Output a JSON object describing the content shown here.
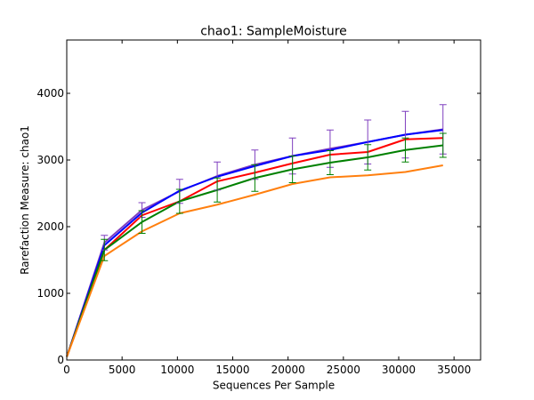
{
  "chart_data": {
    "type": "line",
    "title": "chao1: SampleMoisture",
    "xlabel": "Sequences Per Sample",
    "ylabel": "Rarefaction Measure: chao1",
    "xlim": [
      0,
      37400
    ],
    "ylim": [
      0,
      4800
    ],
    "xticks": [
      0,
      5000,
      10000,
      15000,
      20000,
      25000,
      30000,
      35000
    ],
    "yticks": [
      0,
      1000,
      2000,
      3000,
      4000
    ],
    "grid": false,
    "legend": "none",
    "x": [
      10,
      3400,
      6800,
      10200,
      13600,
      17000,
      20400,
      23800,
      27200,
      30600,
      34000
    ],
    "series": [
      {
        "color": "#7f3fbf",
        "values": [
          50,
          1760,
          2250,
          2530,
          2760,
          2930,
          3060,
          3170,
          3270,
          3380,
          3460
        ],
        "errors": [
          0,
          110,
          110,
          180,
          210,
          220,
          270,
          280,
          330,
          350,
          370
        ]
      },
      {
        "color": "#0000ff",
        "values": [
          50,
          1720,
          2210,
          2540,
          2750,
          2910,
          3060,
          3150,
          3270,
          3380,
          3450
        ],
        "errors": [
          0,
          0,
          0,
          0,
          0,
          0,
          0,
          0,
          0,
          0,
          0
        ]
      },
      {
        "color": "#ff0000",
        "values": [
          50,
          1650,
          2170,
          2380,
          2680,
          2810,
          2950,
          3080,
          3120,
          3310,
          3330
        ],
        "errors": [
          0,
          0,
          0,
          0,
          0,
          0,
          0,
          0,
          0,
          0,
          0
        ]
      },
      {
        "color": "#008000",
        "values": [
          50,
          1650,
          2070,
          2380,
          2550,
          2730,
          2860,
          2960,
          3040,
          3150,
          3220
        ],
        "errors": [
          0,
          160,
          170,
          180,
          180,
          200,
          200,
          180,
          190,
          180,
          180
        ]
      },
      {
        "color": "#ff7f0e",
        "values": [
          50,
          1560,
          1930,
          2200,
          2330,
          2480,
          2640,
          2740,
          2770,
          2820,
          2920
        ],
        "errors": [
          0,
          0,
          0,
          0,
          0,
          0,
          0,
          0,
          0,
          0,
          0
        ]
      }
    ]
  }
}
